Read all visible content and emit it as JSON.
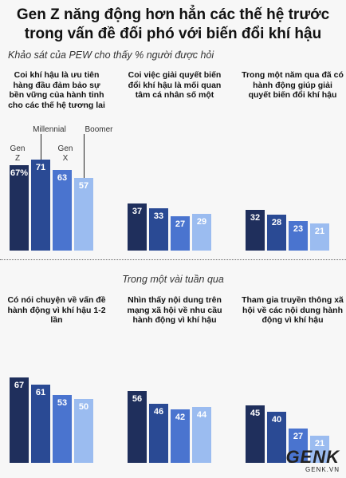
{
  "title_line1": "Gen Z năng động hơn hẳn các thế hệ trước",
  "title_line2": "trong vấn đề đối phó với biến đổi khí hậu",
  "subtitle": "Khảo sát của PEW cho thấy % người được hỏi",
  "section_recent": "Trong một vài tuần qua",
  "series_labels": {
    "genz": "Gen\nZ",
    "millennial": "Millennial",
    "genx": "Gen\nX",
    "boomer": "Boomer"
  },
  "colors": {
    "genz": "#1f2f5c",
    "millennial": "#2a4a94",
    "genx": "#4a74cf",
    "boomer": "#9bbcf0"
  },
  "logo": {
    "main": "GENK",
    "sub": "GENK.VN"
  },
  "chart_data": [
    {
      "type": "bar",
      "title": "Coi khí hậu là ưu tiên hàng đầu đảm bảo sự bền vững của hành tinh cho các thế hệ tương lai",
      "categories": [
        "Gen Z",
        "Millennial",
        "Gen X",
        "Boomer"
      ],
      "values": [
        67,
        71,
        63,
        57
      ],
      "labels": [
        "67%",
        "71",
        "63",
        "57"
      ]
    },
    {
      "type": "bar",
      "title": "Coi việc giải quyết biến đổi khí hậu là mối quan tâm cá nhân số một",
      "categories": [
        "Gen Z",
        "Millennial",
        "Gen X",
        "Boomer"
      ],
      "values": [
        37,
        33,
        27,
        29
      ],
      "labels": [
        "37",
        "33",
        "27",
        "29"
      ]
    },
    {
      "type": "bar",
      "title": "Trong một năm qua đã có hành động giúp giải quyết biến đổi khí hậu",
      "categories": [
        "Gen Z",
        "Millennial",
        "Gen X",
        "Boomer"
      ],
      "values": [
        32,
        28,
        23,
        21
      ],
      "labels": [
        "32",
        "28",
        "23",
        "21"
      ]
    },
    {
      "type": "bar",
      "title": "Có nói chuyện về vấn đề hành động vì khí hậu 1-2 lần",
      "categories": [
        "Gen Z",
        "Millennial",
        "Gen X",
        "Boomer"
      ],
      "values": [
        67,
        61,
        53,
        50
      ],
      "labels": [
        "67",
        "61",
        "53",
        "50"
      ]
    },
    {
      "type": "bar",
      "title": "Nhìn thấy nội dung trên mạng xã hội về nhu cầu hành động vì khí hậu",
      "categories": [
        "Gen Z",
        "Millennial",
        "Gen X",
        "Boomer"
      ],
      "values": [
        56,
        46,
        42,
        44
      ],
      "labels": [
        "56",
        "46",
        "42",
        "44"
      ]
    },
    {
      "type": "bar",
      "title": "Tham gia truyền thông xã hội về các nội dung hành động vì khí hậu",
      "categories": [
        "Gen Z",
        "Millennial",
        "Gen X",
        "Boomer"
      ],
      "values": [
        45,
        40,
        27,
        21
      ],
      "labels": [
        "45",
        "40",
        "27",
        "21"
      ]
    }
  ]
}
